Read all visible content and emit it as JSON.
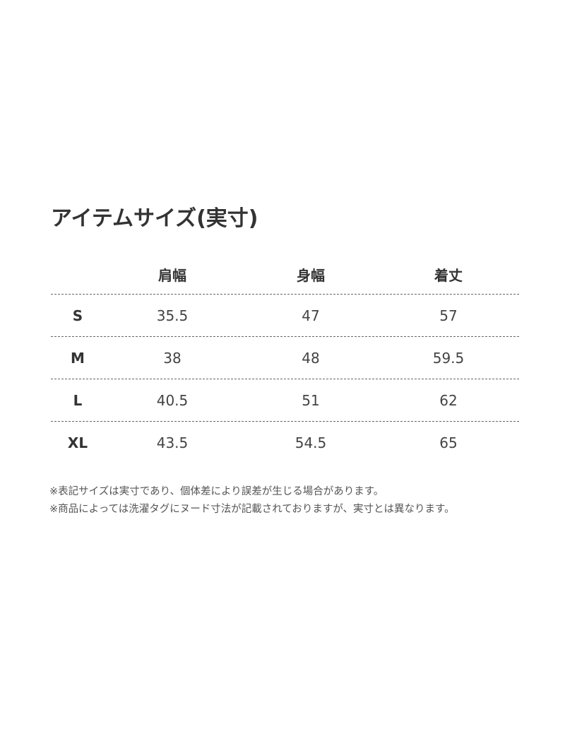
{
  "title": "アイテムサイズ(実寸)",
  "table": {
    "headers": [
      "",
      "肩幅",
      "身幅",
      "着丈"
    ],
    "rows": [
      [
        "S",
        "35.5",
        "47",
        "57"
      ],
      [
        "M",
        "38",
        "48",
        "59.5"
      ],
      [
        "L",
        "40.5",
        "51",
        "62"
      ],
      [
        "XL",
        "43.5",
        "54.5",
        "65"
      ]
    ]
  },
  "notes": [
    "※表記サイズは実寸であり、個体差により誤差が生じる場合があります。",
    "※商品によっては洗濯タグにヌード寸法が記載されておりますが、実寸とは異なります。"
  ]
}
